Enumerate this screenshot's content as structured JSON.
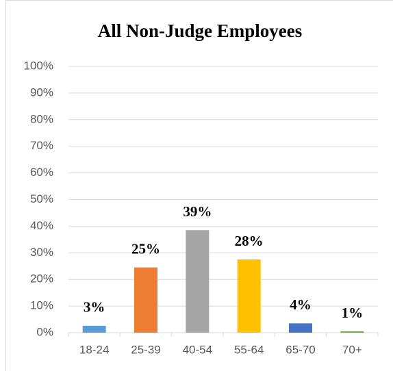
{
  "chart_data": {
    "type": "bar",
    "title": "All Non-Judge Employees",
    "categories": [
      "18-24",
      "25-39",
      "40-54",
      "55-64",
      "65-70",
      "70+"
    ],
    "values": [
      2.6,
      24.5,
      38.5,
      27.5,
      3.5,
      0.5
    ],
    "value_labels": [
      "3%",
      "25%",
      "39%",
      "28%",
      "4%",
      "1%"
    ],
    "colors": [
      "#5b9bd5",
      "#ed7d31",
      "#a5a5a5",
      "#ffc000",
      "#4472c4",
      "#70ad47"
    ],
    "ylim": [
      0,
      100
    ],
    "yticks": [
      {
        "value": 0,
        "label": "0%"
      },
      {
        "value": 10,
        "label": "10%"
      },
      {
        "value": 20,
        "label": "20%"
      },
      {
        "value": 30,
        "label": "30%"
      },
      {
        "value": 40,
        "label": "40%"
      },
      {
        "value": 50,
        "label": "50%"
      },
      {
        "value": 60,
        "label": "60%"
      },
      {
        "value": 70,
        "label": "70%"
      },
      {
        "value": 80,
        "label": "80%"
      },
      {
        "value": 90,
        "label": "90%"
      },
      {
        "value": 100,
        "label": "100%"
      }
    ],
    "grid": true
  }
}
